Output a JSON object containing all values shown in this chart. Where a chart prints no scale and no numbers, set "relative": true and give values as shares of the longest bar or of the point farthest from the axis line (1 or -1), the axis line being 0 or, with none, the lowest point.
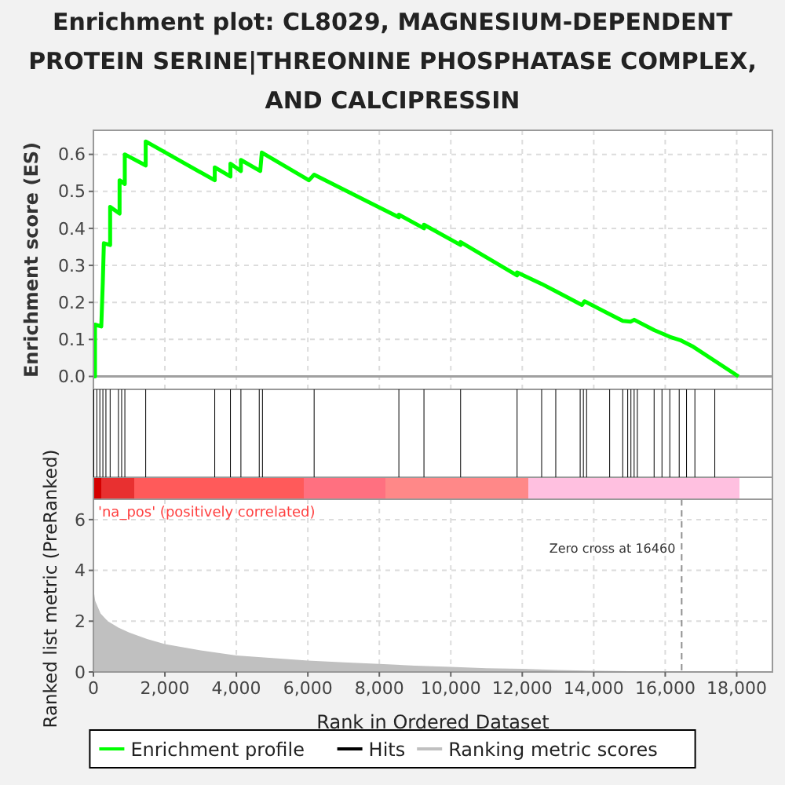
{
  "chart_data": [
    {
      "type": "line",
      "title": "Enrichment plot: CL8029, MAGNESIUM-DEPENDENT PROTEIN SERINE|THREONINE PHOSPHATASE COMPLEX, AND CALCIPRESSIN",
      "ylabel": "Enrichment score (ES)",
      "xlim": [
        0,
        19000
      ],
      "ylim": [
        -0.035,
        0.665
      ],
      "xticks": [
        0,
        2000,
        4000,
        6000,
        8000,
        10000,
        12000,
        14000,
        16000,
        18000
      ],
      "yticks": [
        {
          "value": 0,
          "label": "0.0"
        },
        {
          "value": 0.1,
          "label": "0.1"
        },
        {
          "value": 0.2,
          "label": "0.2"
        },
        {
          "value": 0.3,
          "label": "0.3"
        },
        {
          "value": 0.4,
          "label": "0.4"
        },
        {
          "value": 0.5,
          "label": "0.5"
        },
        {
          "value": 0.6,
          "label": "0.6"
        }
      ],
      "tick_labels": "y",
      "grid": true,
      "legend": "bottom",
      "ref_lines": [
        {
          "axis": "y",
          "value": 0,
          "color": "#a0a0a0"
        }
      ],
      "series": [
        {
          "name": "Enrichment profile",
          "color": "#00ff00",
          "x": [
            0,
            44,
            44,
            220,
            263,
            293,
            468,
            468,
            732,
            732,
            878,
            878,
            1463,
            1463,
            3395,
            3395,
            3834,
            3834,
            4127,
            4127,
            4668,
            4712,
            6030,
            6176,
            8547,
            8547,
            9249,
            9249,
            10274,
            10274,
            11855,
            11855,
            12542,
            12937,
            13669,
            13742,
            14445,
            14811,
            15030,
            15132,
            15689,
            16128,
            16420,
            16787,
            18050
          ],
          "values": [
            0,
            0,
            0.14,
            0.135,
            0.255,
            0.36,
            0.355,
            0.458,
            0.44,
            0.53,
            0.52,
            0.6,
            0.57,
            0.635,
            0.53,
            0.565,
            0.54,
            0.575,
            0.555,
            0.585,
            0.555,
            0.605,
            0.53,
            0.545,
            0.43,
            0.437,
            0.4,
            0.41,
            0.355,
            0.363,
            0.273,
            0.281,
            0.25,
            0.23,
            0.193,
            0.203,
            0.168,
            0.15,
            0.148,
            0.153,
            0.125,
            0.107,
            0.098,
            0.08,
            0
          ]
        }
      ]
    },
    {
      "type": "bar",
      "relative": true,
      "xlim": [
        0,
        19000
      ],
      "tick_labels": false,
      "legend": "bottom",
      "series": [
        {
          "name": "Hits",
          "color": "#000000",
          "x": [
            10,
            95,
            180,
            265,
            350,
            468,
            700,
            790,
            880,
            1463,
            3395,
            3834,
            4127,
            4640,
            4730,
            6176,
            8547,
            9249,
            10274,
            11855,
            12542,
            12937,
            13620,
            13710,
            13800,
            14445,
            14811,
            14950,
            15040,
            15130,
            15220,
            15689,
            15909,
            16128,
            16391,
            16596,
            16830,
            17387
          ],
          "values": [
            1,
            1,
            1,
            1,
            1,
            1,
            1,
            1,
            1,
            1,
            1,
            1,
            1,
            1,
            1,
            1,
            1,
            1,
            1,
            1,
            1,
            1,
            1,
            1,
            1,
            1,
            1,
            1,
            1,
            1,
            1,
            1,
            1,
            1,
            1,
            1,
            1,
            1
          ]
        }
      ]
    },
    {
      "type": "area",
      "xlabel": "Rank in Ordered Dataset",
      "ylabel": "Ranked list metric (PreRanked)",
      "xlim": [
        0,
        19000
      ],
      "ylim": [
        0,
        6.8
      ],
      "xticks": [
        0,
        {
          "value": 2000,
          "label": "2,000"
        },
        {
          "value": 4000,
          "label": "4,000"
        },
        {
          "value": 6000,
          "label": "6,000"
        },
        {
          "value": 8000,
          "label": "8,000"
        },
        {
          "value": 10000,
          "label": "10,000"
        },
        {
          "value": 12000,
          "label": "12,000"
        },
        {
          "value": 14000,
          "label": "14,000"
        },
        {
          "value": 16000,
          "label": "16,000"
        },
        {
          "value": 18000,
          "label": "18,000"
        }
      ],
      "yticks": [
        0,
        2,
        4,
        6
      ],
      "grid": true,
      "legend": "bottom",
      "ref_lines": [
        {
          "axis": "x",
          "value": 16460,
          "label": "Zero cross at 16460",
          "color": "#909090",
          "line_style": "dashed"
        }
      ],
      "annotations": [
        "'na_pos' (positively correlated)"
      ],
      "series": [
        {
          "name": "Ranking metric scores",
          "color": "#c0c0c0",
          "x": [
            0,
            50,
            200,
            400,
            700,
            1000,
            1500,
            2000,
            3000,
            4000,
            5000,
            6000,
            7000,
            8000,
            9000,
            10000,
            11000,
            12000,
            13000,
            14000,
            15000,
            16000,
            16460
          ],
          "values": [
            3.3,
            2.8,
            2.3,
            2.0,
            1.75,
            1.55,
            1.3,
            1.1,
            0.85,
            0.65,
            0.55,
            0.45,
            0.38,
            0.32,
            0.25,
            0.2,
            0.15,
            0.12,
            0.08,
            0.05,
            0.03,
            0.01,
            0
          ]
        }
      ]
    }
  ]
}
